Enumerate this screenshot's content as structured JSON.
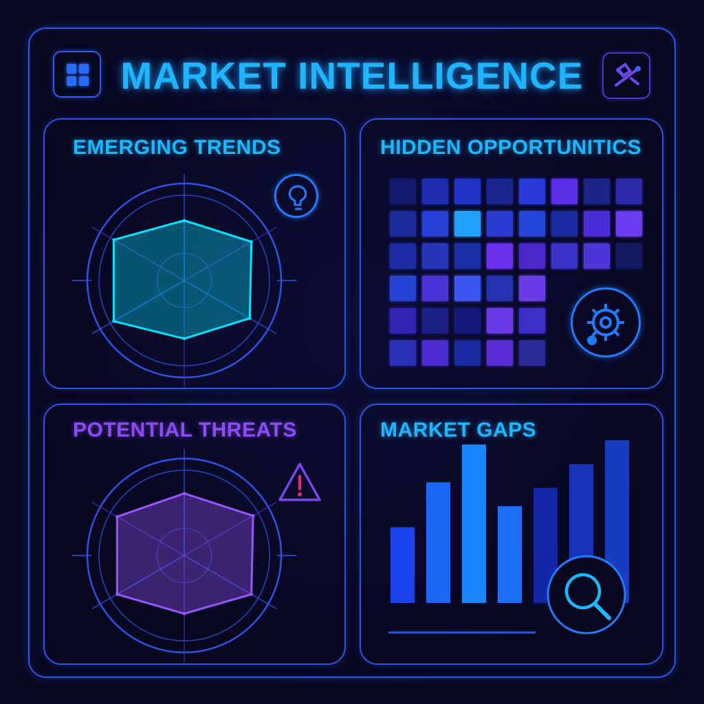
{
  "header": {
    "title": "MARKET INTELLIGENCE",
    "menu_icon": "grid-icon",
    "tool_icon": "satellite-icon"
  },
  "panels": {
    "emerging_trends": {
      "title": "EMERGING TRENDS",
      "icon": "lightbulb-icon",
      "color": "#1ab8ff"
    },
    "hidden_opportunities": {
      "title": "HIDDEN OPPORTUNITICS",
      "icon": "gear-icon",
      "color": "#1ab8ff"
    },
    "potential_threats": {
      "title": "POTENTIAL THREATS",
      "icon": "warning-icon",
      "color": "#8a4cf5"
    },
    "market_gaps": {
      "title": "MARKET GAPS",
      "icon": "magnifier-icon",
      "color": "#1ab8ff"
    }
  },
  "colors": {
    "background": "#07071f",
    "frame": "#2e56f0",
    "cyan": "#1fb4ff",
    "purple": "#8a4cf5"
  },
  "chart_data": [
    {
      "type": "radar",
      "panel": "emerging_trends",
      "values": [
        0.62,
        0.8,
        0.78,
        0.6,
        0.84,
        0.84
      ],
      "color": "#00e5ff"
    },
    {
      "type": "heatmap",
      "panel": "hidden_opportunities",
      "rows": 6,
      "cols": 8,
      "cells": [
        [
          "#141a6e",
          "#1e2bb0",
          "#2035c8",
          "#1a2590",
          "#2a3ad8",
          "#5a2ee6",
          "#1b2486",
          "#2c2aa8"
        ],
        [
          "#1a2a9a",
          "#2740d6",
          "#1fa3ff",
          "#2b3bcf",
          "#2447d9",
          "#1c2aa0",
          "#4a2cd8",
          "#6a3cf0"
        ],
        [
          "#1d2ba4",
          "#2735b8",
          "#1b2fa6",
          "#6a30ea",
          "#4b26c9",
          "#3a32c6",
          "#4d35d6",
          "#141a62"
        ],
        [
          "#2544d6",
          "#4a34d8",
          "#3a55f0",
          "#2432b0",
          "#6a3ce8",
          "#0b0b30",
          "#07071f",
          "#07071f"
        ],
        [
          "#3324b8",
          "#1c1f86",
          "#17197a",
          "#6a3ce8",
          "#3c2ec8",
          "#07071f",
          "#07071f",
          "#07071f"
        ],
        [
          "#2a30b8",
          "#4a2cd0",
          "#1c2aa0",
          "#5a2ed6",
          "#2a2a9a",
          "#07071f",
          "#07071f",
          "#07071f"
        ]
      ]
    },
    {
      "type": "radar",
      "panel": "potential_threats",
      "values": [
        0.64,
        0.82,
        0.8,
        0.6,
        0.8,
        0.8
      ],
      "color": "#9a55ff"
    },
    {
      "type": "bar",
      "panel": "market_gaps",
      "values": [
        0.54,
        0.86,
        1.13,
        0.69,
        0.82,
        0.99,
        1.16
      ],
      "ylim": [
        0,
        1.2
      ],
      "colors": [
        "#1c44ec",
        "#1d67f5",
        "#1a84ff",
        "#1b6ff8",
        "#1730c8",
        "#1a3ee0",
        "#1d4bea"
      ]
    }
  ]
}
